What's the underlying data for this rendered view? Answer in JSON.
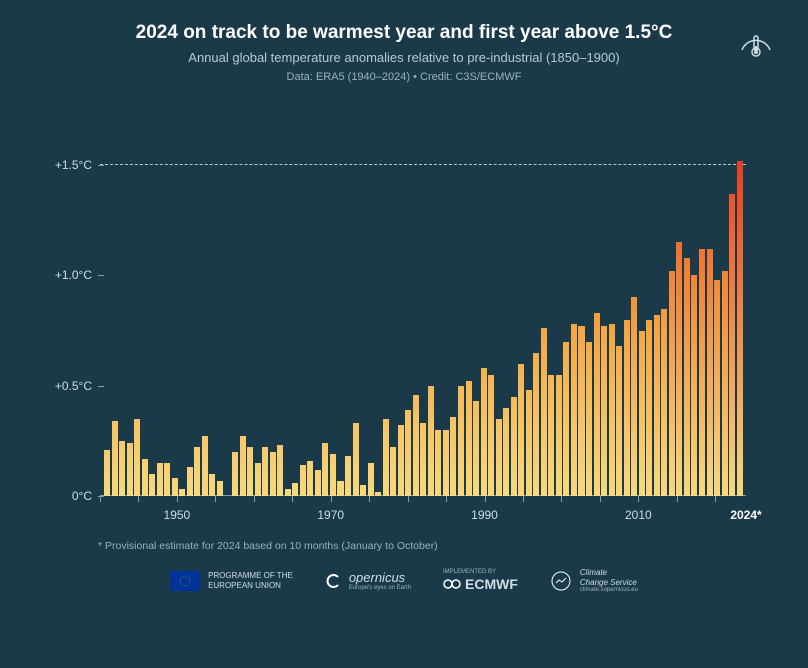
{
  "header": {
    "title": "2024 on track to be warmest year and first year above 1.5°C",
    "subtitle": "Annual global temperature anomalies relative to pre-industrial (1850–1900)",
    "meta": "Data: ERA5 (1940–2024)  •  Credit: C3S/ECMWF"
  },
  "chart": {
    "type": "bar",
    "background_color": "#1a3a4a",
    "ylim": [
      0,
      1.7
    ],
    "y_ticks": [
      {
        "value": 0,
        "label": "0°C"
      },
      {
        "value": 0.5,
        "label": "+0.5°C"
      },
      {
        "value": 1.0,
        "label": "+1.0°C"
      },
      {
        "value": 1.5,
        "label": "+1.5°C"
      }
    ],
    "ref_line": 1.5,
    "ref_line_color": "#b8c8d0",
    "x_ticks": [
      {
        "year": 1950,
        "label": "1950"
      },
      {
        "year": 1970,
        "label": "1970"
      },
      {
        "year": 1990,
        "label": "1990"
      },
      {
        "year": 2010,
        "label": "2010"
      },
      {
        "year": 2024,
        "label": "2024*",
        "bold": true
      }
    ],
    "x_minor_tick_step": 5,
    "x_range": [
      1940,
      2024
    ],
    "gradient": {
      "low": "#f7d97e",
      "mid": "#f5a742",
      "high": "#e63e1f"
    },
    "series": {
      "years": [
        1940,
        1941,
        1942,
        1943,
        1944,
        1945,
        1946,
        1947,
        1948,
        1949,
        1950,
        1951,
        1952,
        1953,
        1954,
        1955,
        1956,
        1957,
        1958,
        1959,
        1960,
        1961,
        1962,
        1963,
        1964,
        1965,
        1966,
        1967,
        1968,
        1969,
        1970,
        1971,
        1972,
        1973,
        1974,
        1975,
        1976,
        1977,
        1978,
        1979,
        1980,
        1981,
        1982,
        1983,
        1984,
        1985,
        1986,
        1987,
        1988,
        1989,
        1990,
        1991,
        1992,
        1993,
        1994,
        1995,
        1996,
        1997,
        1998,
        1999,
        2000,
        2001,
        2002,
        2003,
        2004,
        2005,
        2006,
        2007,
        2008,
        2009,
        2010,
        2011,
        2012,
        2013,
        2014,
        2015,
        2016,
        2017,
        2018,
        2019,
        2020,
        2021,
        2022,
        2023,
        2024
      ],
      "values": [
        0.21,
        0.34,
        0.25,
        0.24,
        0.35,
        0.17,
        0.1,
        0.15,
        0.15,
        0.08,
        0.03,
        0.13,
        0.22,
        0.27,
        0.1,
        0.07,
        0.0,
        0.2,
        0.27,
        0.22,
        0.15,
        0.22,
        0.2,
        0.23,
        0.03,
        0.06,
        0.14,
        0.16,
        0.12,
        0.24,
        0.19,
        0.07,
        0.18,
        0.33,
        0.05,
        0.15,
        0.02,
        0.35,
        0.22,
        0.32,
        0.39,
        0.46,
        0.33,
        0.5,
        0.3,
        0.3,
        0.36,
        0.5,
        0.52,
        0.43,
        0.58,
        0.55,
        0.35,
        0.4,
        0.45,
        0.6,
        0.48,
        0.65,
        0.76,
        0.55,
        0.55,
        0.7,
        0.78,
        0.77,
        0.7,
        0.83,
        0.77,
        0.78,
        0.68,
        0.8,
        0.9,
        0.75,
        0.8,
        0.82,
        0.85,
        1.02,
        1.15,
        1.08,
        1.0,
        1.12,
        1.12,
        0.98,
        1.02,
        1.37,
        1.52
      ]
    },
    "axis_color": "#8a9ba3",
    "tick_fontsize": 12,
    "title_fontsize": 19
  },
  "footnote": "* Provisional estimate for 2024 based on 10 months (January to October)",
  "credits": {
    "eu": "PROGRAMME OF THE\nEUROPEAN UNION",
    "copernicus": "opernicus",
    "copernicus_sub": "Europe's eyes on Earth",
    "ecmwf_top": "IMPLEMENTED BY",
    "ecmwf": "ECMWF",
    "ccs": "Climate\nChange Service",
    "ccs_sub": "climate.copernicus.eu"
  }
}
